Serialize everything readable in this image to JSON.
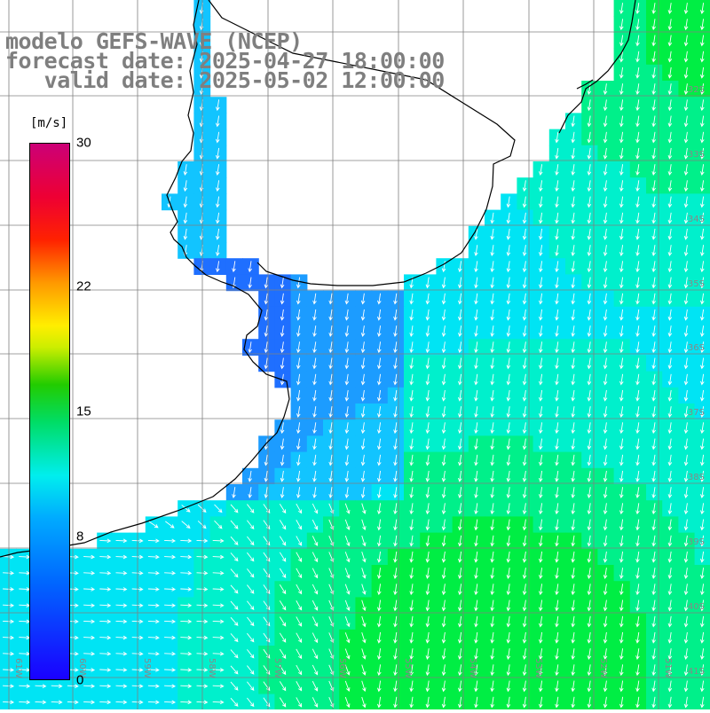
{
  "header": {
    "line1": "modelo GEFS-WAVE (NCEP)",
    "line2": "forecast date: 2025-04-27 18:00:00",
    "line3": "   valid date: 2025-05-02 12:00:00"
  },
  "colorbar": {
    "units": "[m/s]",
    "ticks": [
      {
        "label": "30",
        "value": 30
      },
      {
        "label": "22",
        "value": 22
      },
      {
        "label": "15",
        "value": 15
      },
      {
        "label": "8",
        "value": 8
      },
      {
        "label": "0",
        "value": 0
      }
    ],
    "min": 0,
    "max": 30
  },
  "map": {
    "lon_range": [
      -61,
      -50
    ],
    "lat_range": [
      -41,
      -31
    ],
    "lat_labels": [
      "32S",
      "33S",
      "34S",
      "35S",
      "36S",
      "37S",
      "38S",
      "39S",
      "40S",
      "41S"
    ],
    "lon_labels": [
      "61W",
      "60W",
      "59W",
      "58W",
      "57W",
      "56W",
      "55W",
      "54W",
      "53W",
      "52W",
      "51W"
    ],
    "land_color": "#ffffff",
    "grid_color": "#808080",
    "coast_color": "#000000",
    "arrow_color": "#ffffff",
    "field_description_colors": {
      "weak": "#1f77ff",
      "medium": "#00ccff",
      "moderate": "#00eecc",
      "strong": "#00ee66"
    }
  }
}
